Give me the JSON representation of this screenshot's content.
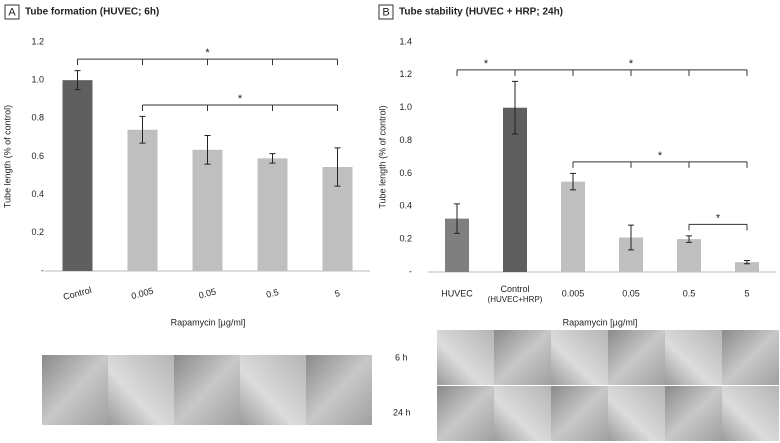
{
  "chart_data": [
    {
      "type": "bar",
      "panel": "A",
      "title": "Tube formation (HUVEC; 6h)",
      "y_label": "Tube length (% of control)",
      "x_label": "Rapamycin [µg/ml]",
      "categories": [
        "Control",
        "0.005",
        "0.05",
        "0.5",
        "5"
      ],
      "values": [
        1.0,
        0.74,
        0.635,
        0.59,
        0.545
      ],
      "errors": [
        0.05,
        0.07,
        0.075,
        0.025,
        0.1
      ],
      "colors": [
        "#5f5f5f",
        "#bfbfbf",
        "#bfbfbf",
        "#bfbfbf",
        "#bfbfbf"
      ],
      "ylim": [
        0,
        1.2
      ],
      "yticks": [
        {
          "value": 0,
          "label": "-"
        },
        0.2,
        0.4,
        0.6,
        0.8,
        {
          "value": 1,
          "label": "1.0"
        },
        1.2
      ],
      "brackets": [
        {
          "label": "*",
          "from": "Control",
          "to": "5"
        },
        {
          "label": "*",
          "from": "0.005",
          "to": "5"
        }
      ]
    },
    {
      "type": "bar",
      "panel": "B",
      "title": "Tube stability (HUVEC + HRP; 24h)",
      "y_label": "Tube length (% of control)",
      "x_label": "Rapamycin [µg/ml]",
      "categories": [
        "HUVEC",
        "Control\n(HUVEC+HRP)",
        "0.005",
        "0.05",
        "0.5",
        "5"
      ],
      "values": [
        0.325,
        1.0,
        0.55,
        0.21,
        0.2,
        0.06
      ],
      "errors": [
        0.09,
        0.16,
        0.05,
        0.075,
        0.02,
        0.01
      ],
      "colors": [
        "#7f7f7f",
        "#5f5f5f",
        "#bfbfbf",
        "#bfbfbf",
        "#bfbfbf",
        "#bfbfbf"
      ],
      "ylim": [
        0,
        1.4
      ],
      "yticks": [
        {
          "value": 0,
          "label": "-"
        },
        0.2,
        0.4,
        0.6,
        0.8,
        {
          "value": 1,
          "label": "1.0"
        },
        1.2,
        1.4
      ],
      "brackets": [
        {
          "label": "*",
          "from": "HUVEC",
          "to": "Control\n(HUVEC+HRP)"
        },
        {
          "label": "*",
          "from": "Control\n(HUVEC+HRP)",
          "to": "5"
        },
        {
          "label": "*",
          "from": "0.005",
          "to": "5"
        },
        {
          "label": "*",
          "from": "0.5",
          "to": "5"
        }
      ]
    }
  ],
  "image_rows": [
    "6 h",
    "24 h"
  ]
}
